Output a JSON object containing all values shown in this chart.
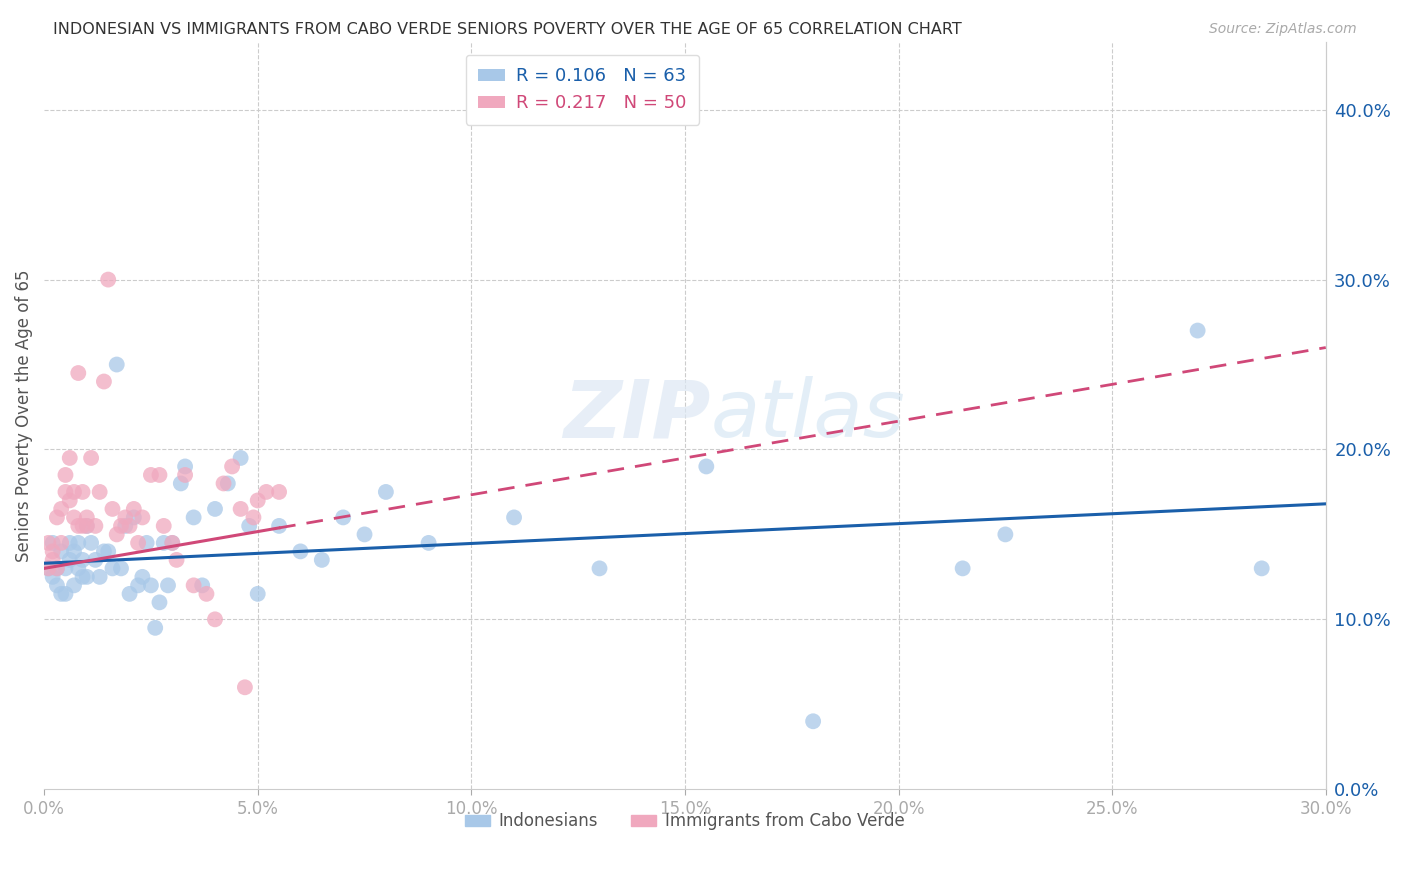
{
  "title": "INDONESIAN VS IMMIGRANTS FROM CABO VERDE SENIORS POVERTY OVER THE AGE OF 65 CORRELATION CHART",
  "source": "Source: ZipAtlas.com",
  "ylabel": "Seniors Poverty Over the Age of 65",
  "xlim": [
    0.0,
    0.3
  ],
  "ylim": [
    0.0,
    0.44
  ],
  "r_blue": 0.106,
  "n_blue": 63,
  "r_pink": 0.217,
  "n_pink": 50,
  "blue_color": "#a8c8e8",
  "pink_color": "#f0a8be",
  "blue_line_color": "#1a5faa",
  "pink_line_color": "#d04878",
  "legend_label_blue": "Indonesians",
  "legend_label_pink": "Immigrants from Cabo Verde",
  "background_color": "#ffffff",
  "grid_color": "#cccccc",
  "title_color": "#333333",
  "source_color": "#aaaaaa",
  "axis_label_color": "#555555",
  "tick_color": "#aaaaaa",
  "watermark_color": "#ddeeff",
  "blue_x": [
    0.001,
    0.002,
    0.002,
    0.003,
    0.003,
    0.004,
    0.004,
    0.005,
    0.005,
    0.006,
    0.006,
    0.007,
    0.007,
    0.008,
    0.008,
    0.009,
    0.009,
    0.01,
    0.01,
    0.011,
    0.012,
    0.013,
    0.014,
    0.015,
    0.016,
    0.017,
    0.018,
    0.019,
    0.02,
    0.021,
    0.022,
    0.023,
    0.024,
    0.025,
    0.026,
    0.027,
    0.028,
    0.029,
    0.03,
    0.032,
    0.033,
    0.035,
    0.037,
    0.04,
    0.043,
    0.046,
    0.048,
    0.05,
    0.055,
    0.06,
    0.065,
    0.07,
    0.075,
    0.08,
    0.09,
    0.11,
    0.13,
    0.155,
    0.18,
    0.215,
    0.225,
    0.27,
    0.285
  ],
  "blue_y": [
    0.13,
    0.125,
    0.145,
    0.13,
    0.12,
    0.115,
    0.14,
    0.13,
    0.115,
    0.135,
    0.145,
    0.12,
    0.14,
    0.13,
    0.145,
    0.125,
    0.135,
    0.125,
    0.155,
    0.145,
    0.135,
    0.125,
    0.14,
    0.14,
    0.13,
    0.25,
    0.13,
    0.155,
    0.115,
    0.16,
    0.12,
    0.125,
    0.145,
    0.12,
    0.095,
    0.11,
    0.145,
    0.12,
    0.145,
    0.18,
    0.19,
    0.16,
    0.12,
    0.165,
    0.18,
    0.195,
    0.155,
    0.115,
    0.155,
    0.14,
    0.135,
    0.16,
    0.15,
    0.175,
    0.145,
    0.16,
    0.13,
    0.19,
    0.04,
    0.13,
    0.15,
    0.27,
    0.13
  ],
  "pink_x": [
    0.001,
    0.001,
    0.002,
    0.002,
    0.003,
    0.003,
    0.004,
    0.004,
    0.005,
    0.005,
    0.006,
    0.006,
    0.007,
    0.007,
    0.008,
    0.008,
    0.009,
    0.009,
    0.01,
    0.01,
    0.011,
    0.012,
    0.013,
    0.014,
    0.015,
    0.016,
    0.017,
    0.018,
    0.019,
    0.02,
    0.021,
    0.022,
    0.023,
    0.025,
    0.027,
    0.028,
    0.03,
    0.031,
    0.033,
    0.035,
    0.038,
    0.04,
    0.042,
    0.044,
    0.046,
    0.047,
    0.049,
    0.05,
    0.052,
    0.055
  ],
  "pink_y": [
    0.13,
    0.145,
    0.14,
    0.135,
    0.13,
    0.16,
    0.165,
    0.145,
    0.175,
    0.185,
    0.195,
    0.17,
    0.16,
    0.175,
    0.245,
    0.155,
    0.175,
    0.155,
    0.155,
    0.16,
    0.195,
    0.155,
    0.175,
    0.24,
    0.3,
    0.165,
    0.15,
    0.155,
    0.16,
    0.155,
    0.165,
    0.145,
    0.16,
    0.185,
    0.185,
    0.155,
    0.145,
    0.135,
    0.185,
    0.12,
    0.115,
    0.1,
    0.18,
    0.19,
    0.165,
    0.06,
    0.16,
    0.17,
    0.175,
    0.175
  ],
  "blue_trendline_x0": 0.0,
  "blue_trendline_y0": 0.133,
  "blue_trendline_x1": 0.3,
  "blue_trendline_y1": 0.168,
  "pink_trendline_x0": 0.0,
  "pink_trendline_y0": 0.13,
  "pink_trendline_x1": 0.3,
  "pink_trendline_y1": 0.26
}
